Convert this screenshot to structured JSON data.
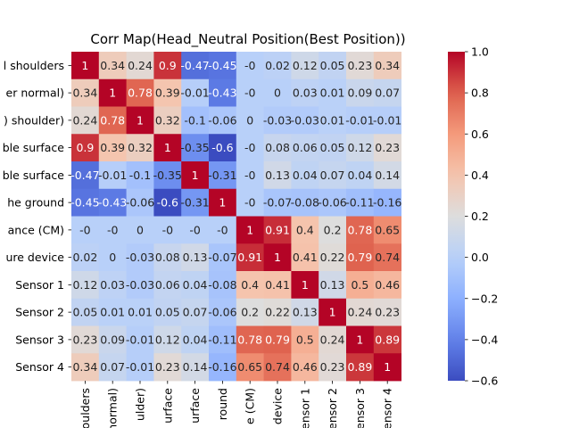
{
  "chart_data": {
    "type": "heatmap",
    "title": "Corr Map(Head_Neutral Position(Best Position))",
    "row_labels": [
      "l shoulders",
      "er normal)",
      ") shoulder)",
      "ble surface",
      "ble surface",
      "he ground",
      "ance (CM)",
      "ure device",
      "Sensor 1",
      "Sensor 2",
      "Sensor 3",
      "Sensor 4"
    ],
    "col_labels": [
      "houlders",
      "normal)",
      "ulder)",
      "urface",
      "urface",
      "round",
      "e (CM)",
      "device",
      "ensor 1",
      "ensor 2",
      "ensor 3",
      "ensor 4"
    ],
    "values": [
      [
        1,
        0.34,
        0.24,
        0.9,
        -0.47,
        -0.45,
        0,
        0.02,
        0.12,
        0.05,
        0.23,
        0.34
      ],
      [
        0.34,
        1,
        0.78,
        0.39,
        -0.01,
        -0.43,
        0,
        0,
        0.03,
        0.01,
        0.09,
        0.07
      ],
      [
        0.24,
        0.78,
        1,
        0.32,
        -0.1,
        -0.06,
        0,
        -0.03,
        -0.03,
        0.01,
        -0.01,
        -0.01
      ],
      [
        0.9,
        0.39,
        0.32,
        1,
        -0.35,
        -0.6,
        0,
        0.08,
        0.06,
        0.05,
        0.12,
        0.23
      ],
      [
        -0.47,
        -0.01,
        -0.1,
        -0.35,
        1,
        -0.31,
        0,
        0.13,
        0.04,
        0.07,
        0.04,
        0.14
      ],
      [
        -0.45,
        -0.43,
        -0.06,
        -0.6,
        -0.31,
        1,
        0,
        -0.07,
        -0.08,
        -0.06,
        -0.11,
        -0.16
      ],
      [
        0,
        0,
        0,
        0,
        0,
        0,
        1,
        0.91,
        0.4,
        0.2,
        0.78,
        0.65
      ],
      [
        0.02,
        0,
        -0.03,
        0.08,
        0.13,
        -0.07,
        0.91,
        1,
        0.41,
        0.22,
        0.79,
        0.74
      ],
      [
        0.12,
        0.03,
        -0.03,
        0.06,
        0.04,
        -0.08,
        0.4,
        0.41,
        1,
        0.13,
        0.5,
        0.46
      ],
      [
        0.05,
        0.01,
        0.01,
        0.05,
        0.07,
        -0.06,
        0.2,
        0.22,
        0.13,
        1,
        0.24,
        0.23
      ],
      [
        0.23,
        0.09,
        -0.01,
        0.12,
        0.04,
        -0.11,
        0.78,
        0.79,
        0.5,
        0.24,
        1,
        0.89
      ],
      [
        0.34,
        0.07,
        -0.01,
        0.23,
        0.14,
        -0.16,
        0.65,
        0.74,
        0.46,
        0.23,
        0.89,
        1
      ]
    ],
    "value_labels": [
      [
        "1",
        "0.34",
        "0.24",
        "0.9",
        "-0.47",
        "-0.45",
        "-0",
        "0.02",
        "0.12",
        "0.05",
        "0.23",
        "0.34"
      ],
      [
        "0.34",
        "1",
        "0.78",
        "0.39",
        "-0.01",
        "-0.43",
        "-0",
        "0",
        "0.03",
        "0.01",
        "0.09",
        "0.07"
      ],
      [
        "0.24",
        "0.78",
        "1",
        "0.32",
        "-0.1",
        "-0.06",
        "0",
        "-0.03",
        "-0.03",
        "0.01",
        "-0.01",
        "-0.01"
      ],
      [
        "0.9",
        "0.39",
        "0.32",
        "1",
        "-0.35",
        "-0.6",
        "-0",
        "0.08",
        "0.06",
        "0.05",
        "0.12",
        "0.23"
      ],
      [
        "-0.47",
        "-0.01",
        "-0.1",
        "-0.35",
        "1",
        "-0.31",
        "-0",
        "0.13",
        "0.04",
        "0.07",
        "0.04",
        "0.14"
      ],
      [
        "-0.45",
        "-0.43",
        "-0.06",
        "-0.6",
        "-0.31",
        "1",
        "-0",
        "-0.07",
        "-0.08",
        "-0.06",
        "-0.11",
        "-0.16"
      ],
      [
        "-0",
        "-0",
        "0",
        "-0",
        "-0",
        "-0",
        "1",
        "0.91",
        "0.4",
        "0.2",
        "0.78",
        "0.65"
      ],
      [
        "0.02",
        "0",
        "-0.03",
        "0.08",
        "0.13",
        "-0.07",
        "0.91",
        "1",
        "0.41",
        "0.22",
        "0.79",
        "0.74"
      ],
      [
        "0.12",
        "0.03",
        "-0.03",
        "0.06",
        "0.04",
        "-0.08",
        "0.4",
        "0.41",
        "1",
        "0.13",
        "0.5",
        "0.46"
      ],
      [
        "0.05",
        "0.01",
        "0.01",
        "0.05",
        "0.07",
        "-0.06",
        "0.2",
        "0.22",
        "0.13",
        "1",
        "0.24",
        "0.23"
      ],
      [
        "0.23",
        "0.09",
        "-0.01",
        "0.12",
        "0.04",
        "-0.11",
        "0.78",
        "0.79",
        "0.5",
        "0.24",
        "1",
        "0.89"
      ],
      [
        "0.34",
        "0.07",
        "-0.01",
        "0.23",
        "0.14",
        "-0.16",
        "0.65",
        "0.74",
        "0.46",
        "0.23",
        "0.89",
        "1"
      ]
    ],
    "colorbar": {
      "colormap": "coolwarm",
      "vmin": -0.6,
      "vmax": 1.0,
      "ticks": [
        -0.6,
        -0.4,
        -0.2,
        0.0,
        0.2,
        0.4,
        0.6,
        0.8,
        1.0
      ],
      "tick_labels": [
        "−0.6",
        "−0.4",
        "−0.2",
        "0.0",
        "0.2",
        "0.4",
        "0.6",
        "0.8",
        "1.0"
      ]
    },
    "grid": false,
    "legend": "colorbar right",
    "colors": {
      "low": "#3b4cc0",
      "mid": "#dddddd",
      "high": "#b40426"
    }
  }
}
